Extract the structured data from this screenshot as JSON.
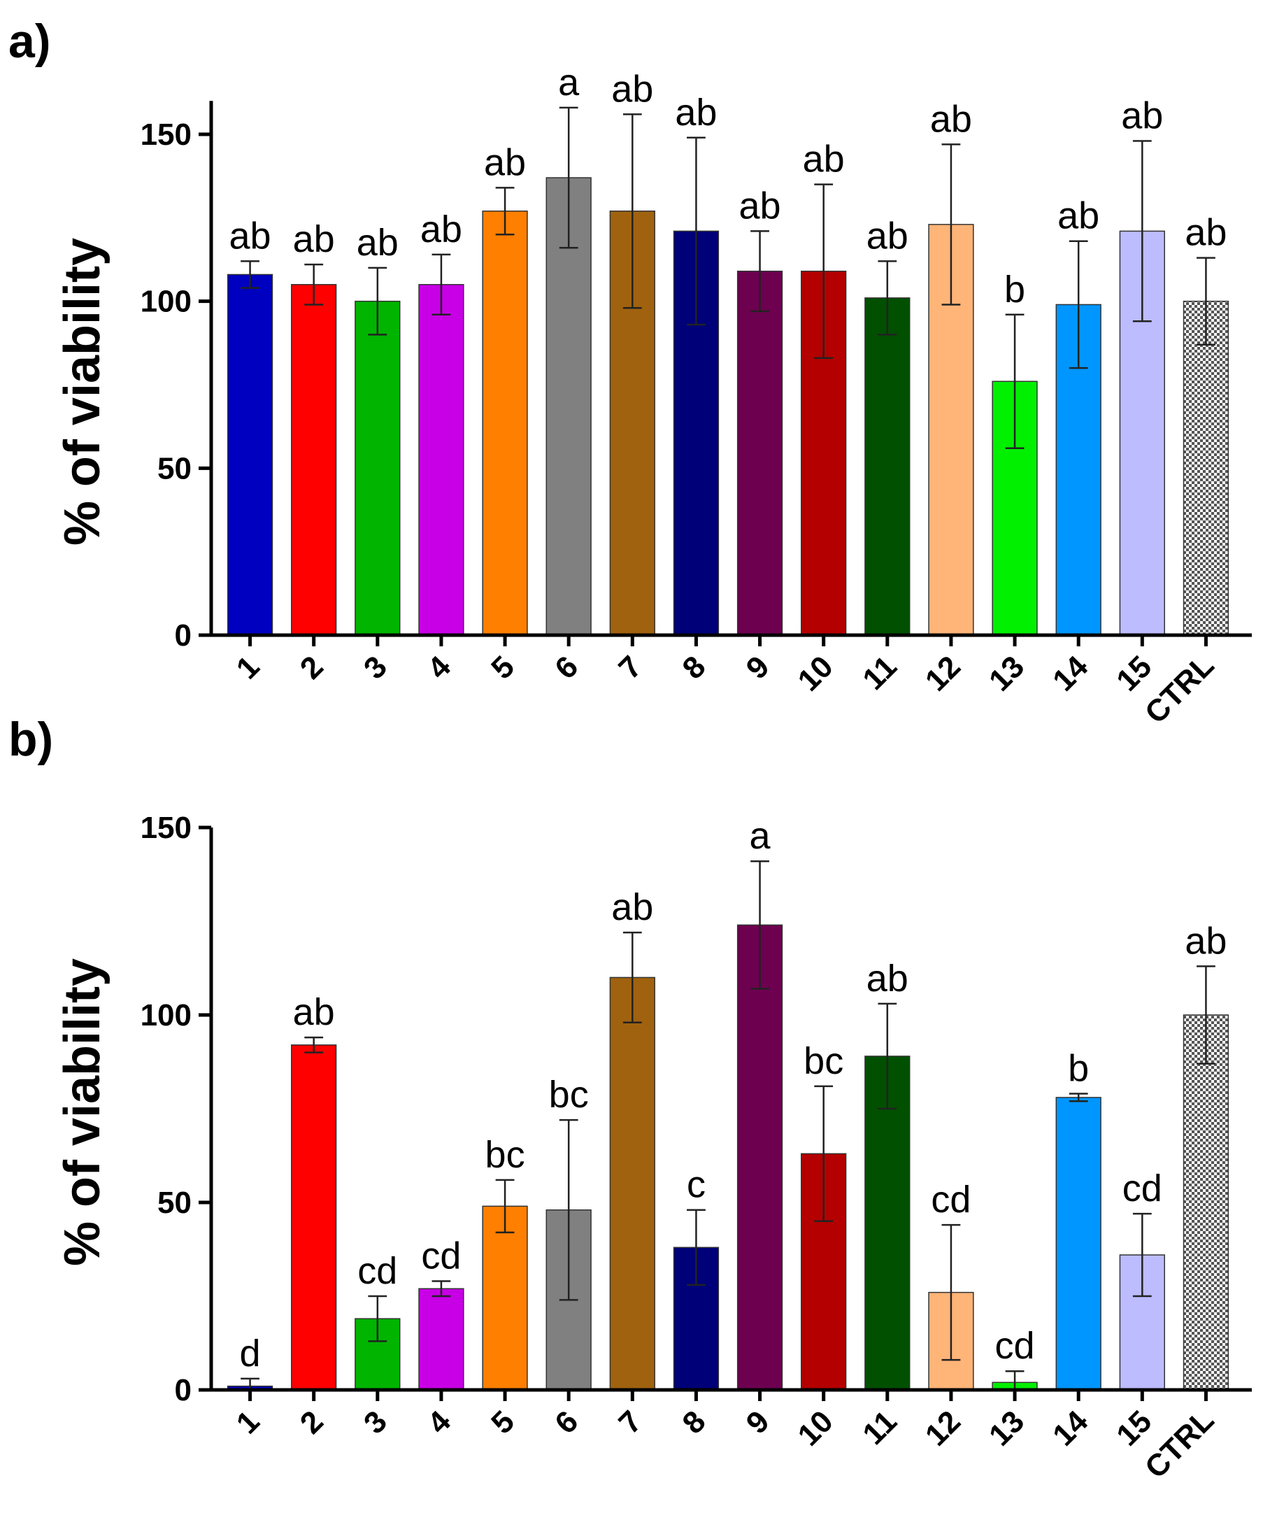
{
  "panels": [
    {
      "label": "a)",
      "chart_data": {
        "type": "bar",
        "ylabel": "% of viability",
        "ylim": [
          0,
          160
        ],
        "yticks": [
          0,
          50,
          100,
          150
        ],
        "categories": [
          "1",
          "2",
          "3",
          "4",
          "5",
          "6",
          "7",
          "8",
          "9",
          "10",
          "11",
          "12",
          "13",
          "14",
          "15",
          "CTRL"
        ],
        "values": [
          108,
          105,
          100,
          105,
          127,
          137,
          127,
          121,
          109,
          109,
          101,
          123,
          76,
          99,
          121,
          100
        ],
        "errors": [
          4,
          6,
          10,
          9,
          7,
          21,
          29,
          28,
          12,
          26,
          11,
          24,
          20,
          19,
          27,
          13
        ],
        "significance": [
          "ab",
          "ab",
          "ab",
          "ab",
          "ab",
          "a",
          "ab",
          "ab",
          "ab",
          "ab",
          "ab",
          "ab",
          "b",
          "ab",
          "ab",
          "ab"
        ]
      }
    },
    {
      "label": "b)",
      "chart_data": {
        "type": "bar",
        "ylabel": "% of viability",
        "ylim": [
          0,
          150
        ],
        "yticks": [
          0,
          50,
          100,
          150
        ],
        "categories": [
          "1",
          "2",
          "3",
          "4",
          "5",
          "6",
          "7",
          "8",
          "9",
          "10",
          "11",
          "12",
          "13",
          "14",
          "15",
          "CTRL"
        ],
        "values": [
          1,
          92,
          19,
          27,
          49,
          48,
          110,
          38,
          124,
          63,
          89,
          26,
          2,
          78,
          36,
          100
        ],
        "errors": [
          2,
          2,
          6,
          2,
          7,
          24,
          12,
          10,
          17,
          18,
          14,
          18,
          3,
          1,
          11,
          13
        ],
        "significance": [
          "d",
          "ab",
          "cd",
          "cd",
          "bc",
          "bc",
          "ab",
          "c",
          "a",
          "bc",
          "ab",
          "cd",
          "cd",
          "b",
          "cd",
          "ab"
        ]
      }
    }
  ],
  "colors": [
    "#0000c0",
    "#ff0000",
    "#00b400",
    "#c800e6",
    "#ff7f00",
    "#808080",
    "#a0620f",
    "#000078",
    "#6e0050",
    "#b40000",
    "#005000",
    "#ffb478",
    "#00f000",
    "#0096ff",
    "#bcbcff",
    "#cccccc"
  ]
}
